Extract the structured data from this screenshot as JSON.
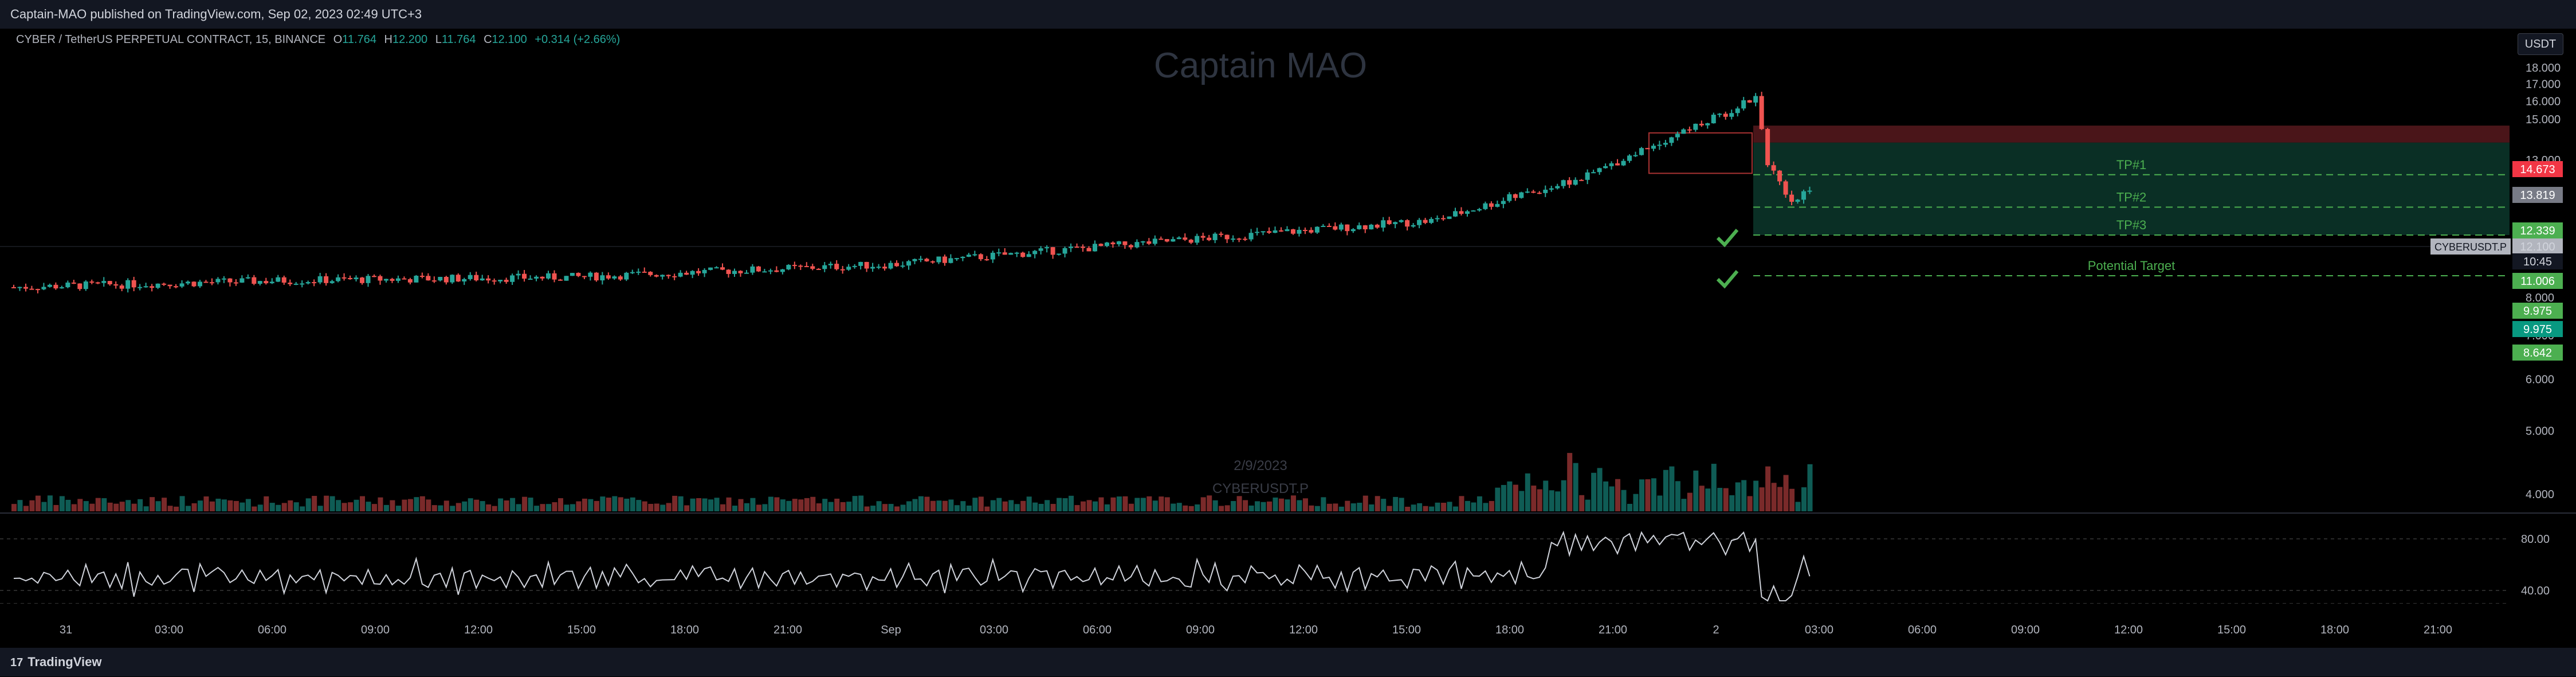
{
  "header": {
    "publish_line": "Captain-MAO published on TradingView.com, Sep 02, 2023 02:49 UTC+3"
  },
  "legend": {
    "symbol": "CYBER / TetherUS PERPETUAL CONTRACT, 15, BINANCE",
    "open_label": "O",
    "open": "11.764",
    "high_label": "H",
    "high": "12.200",
    "low_label": "L",
    "low": "11.764",
    "close_label": "C",
    "close": "12.100",
    "change": "+0.314 (+2.66%)"
  },
  "currency_button": "USDT",
  "watermark": "Captain MAO",
  "faded_label_1": "2/9/2023",
  "faded_label_2": "CYBERUSDT.P",
  "footer": {
    "brand": "TradingView"
  },
  "colors": {
    "up": "#26a69a",
    "down": "#ef5350",
    "tp_text": "#4caf50",
    "zone_green": "#0d3b2e",
    "zone_red": "#5c1a1f"
  },
  "chart_data": {
    "type": "candlestick",
    "symbol": "CYBERUSDT.P",
    "timeframe": "15",
    "y_axis": {
      "ticks": [
        "18.000",
        "17.000",
        "16.000",
        "15.000",
        "13.000",
        "8.000",
        "7.000",
        "6.000",
        "5.000",
        "4.000"
      ],
      "ylim": [
        3.5,
        18.3
      ],
      "scale": "log"
    },
    "x_axis": {
      "ticks": [
        "31",
        "03:00",
        "06:00",
        "09:00",
        "12:00",
        "15:00",
        "18:00",
        "21:00",
        "Sep",
        "03:00",
        "06:00",
        "09:00",
        "12:00",
        "15:00",
        "18:00",
        "21:00",
        "2",
        "03:00",
        "06:00",
        "09:00",
        "12:00",
        "15:00",
        "18:00",
        "21:00"
      ]
    },
    "price_labels": [
      {
        "value": "14.673",
        "kind": "stop"
      },
      {
        "value": "13.819",
        "kind": "entry"
      },
      {
        "value": "12.339",
        "kind": "tp1"
      },
      {
        "value": "12.100",
        "kind": "last"
      },
      {
        "value": "10:45",
        "kind": "countdown"
      },
      {
        "value": "11.006",
        "kind": "tp2"
      },
      {
        "value": "9.975",
        "kind": "tp3"
      },
      {
        "value": "9.975",
        "kind": "tp3b"
      },
      {
        "value": "8.642",
        "kind": "potential"
      }
    ],
    "last_price_tag": "CYBERUSDT.P",
    "targets": [
      {
        "label": "TP#1",
        "value": 12.339
      },
      {
        "label": "TP#2",
        "value": 11.006
      },
      {
        "label": "TP#3",
        "value": 9.975
      },
      {
        "label": "Potential Target",
        "value": 8.642
      }
    ],
    "zones": {
      "stop_top": 14.673,
      "stop_bottom": 13.819,
      "entry": 13.819,
      "target_bottom": 9.975
    },
    "candles_summary": {
      "start_price": 8.4,
      "pre_breakout_price": 9.5,
      "peak_price": 16.3,
      "last_price": 12.1,
      "note_values": [
        8.3,
        8.5,
        8.6,
        9.0,
        10.5,
        12.2,
        15.2,
        16.3,
        13.0,
        11.0,
        12.1
      ]
    },
    "rsi": {
      "ticks": [
        "80.00",
        "40.00"
      ],
      "last_value": 43
    }
  }
}
